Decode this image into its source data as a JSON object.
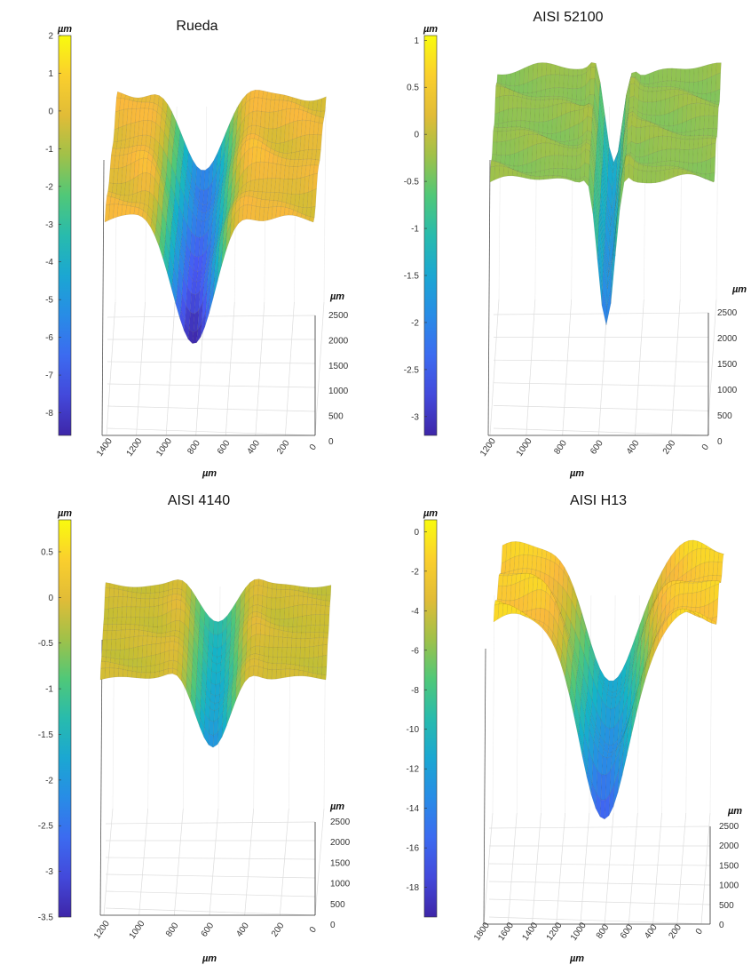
{
  "chart_data": [
    {
      "type": "surface",
      "title": "Rueda",
      "xlabel": "µm",
      "ylabel": "µm",
      "colorbar_label": "µm",
      "x_ticks": [
        "1400",
        "1200",
        "1000",
        "800",
        "600",
        "400",
        "200",
        "0"
      ],
      "y_ticks": [
        "0",
        "500",
        "1000",
        "1500",
        "2000",
        "2500"
      ],
      "colorbar_ticks": [
        "2",
        "1",
        "0",
        "-1",
        "-2",
        "-3",
        "-4",
        "-5",
        "-6",
        "-7",
        "-8"
      ],
      "colorbar_range": [
        -8.6,
        2
      ],
      "groove": {
        "center_x": 800,
        "min_depth": -8.3,
        "plateau": 0
      }
    },
    {
      "type": "surface",
      "title": "AISI 52100",
      "xlabel": "µm",
      "ylabel": "µm",
      "colorbar_label": "µm",
      "x_ticks": [
        "1200",
        "1000",
        "800",
        "600",
        "400",
        "200",
        "0"
      ],
      "y_ticks": [
        "0",
        "500",
        "1000",
        "1500",
        "2000",
        "2500"
      ],
      "colorbar_ticks": [
        "1",
        "0.5",
        "0",
        "-0.5",
        "-1",
        "-1.5",
        "-2",
        "-2.5",
        "-3"
      ],
      "colorbar_range": [
        -3.2,
        1.05
      ],
      "groove": {
        "center_x": 600,
        "min_depth": -2.1,
        "plateau": -0.3
      }
    },
    {
      "type": "surface",
      "title": "AISI 4140",
      "xlabel": "µm",
      "ylabel": "µm",
      "colorbar_label": "µm",
      "x_ticks": [
        "1200",
        "1000",
        "800",
        "600",
        "400",
        "200",
        "0"
      ],
      "y_ticks": [
        "0",
        "500",
        "1000",
        "1500",
        "2000",
        "2500"
      ],
      "colorbar_ticks": [
        "0.5",
        "0",
        "-0.5",
        "-1",
        "-1.5",
        "-2",
        "-2.5",
        "-3",
        "-3.5"
      ],
      "colorbar_range": [
        -3.5,
        0.85
      ],
      "groove": {
        "center_x": 600,
        "min_depth": -2.0,
        "plateau": -0.2
      }
    },
    {
      "type": "surface",
      "title": "AISI H13",
      "xlabel": "µm",
      "ylabel": "µm",
      "colorbar_label": "µm",
      "x_ticks": [
        "1800",
        "1600",
        "1400",
        "1200",
        "1000",
        "800",
        "600",
        "400",
        "200",
        "0"
      ],
      "y_ticks": [
        "0",
        "500",
        "1000",
        "1500",
        "2000",
        "2500"
      ],
      "colorbar_ticks": [
        "0",
        "-2",
        "-4",
        "-6",
        "-8",
        "-10",
        "-12",
        "-14",
        "-16",
        "-18"
      ],
      "colorbar_range": [
        -19.5,
        0.6
      ],
      "groove": {
        "center_x": 850,
        "min_depth": -15.5,
        "plateau": -1.5
      }
    }
  ]
}
